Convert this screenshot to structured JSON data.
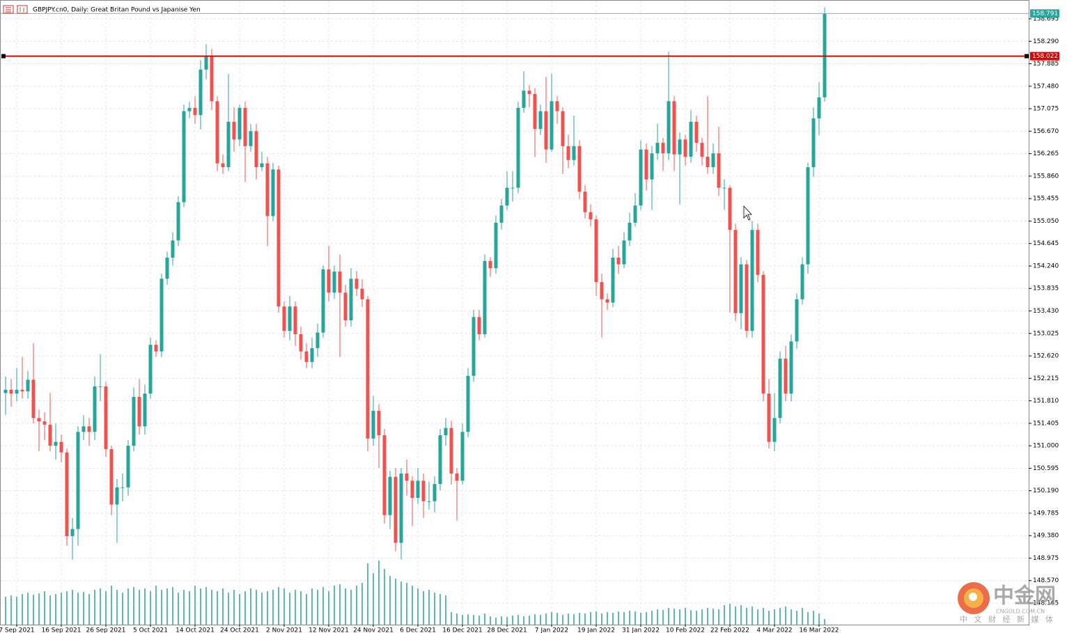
{
  "chart_data": {
    "type": "candlestick",
    "title": "GBPJPY.cn0, Daily:  Great Britan Pound vs Japanise Yen",
    "up_color": "#26a69a",
    "down_color": "#ef5350",
    "volume_color": "#26a69a",
    "grid": true,
    "ylim": [
      147.776,
      159.034
    ],
    "yticks": [
      158.695,
      {
        "value": 158.29,
        "label": "158.290"
      },
      157.885,
      {
        "value": 157.48,
        "label": "157.480"
      },
      157.075,
      {
        "value": 156.67,
        "label": "156.670"
      },
      156.265,
      {
        "value": 155.86,
        "label": "155.860"
      },
      155.455,
      {
        "value": 155.05,
        "label": "155.050"
      },
      154.645,
      {
        "value": 154.24,
        "label": "154.240"
      },
      153.835,
      {
        "value": 153.43,
        "label": "153.430"
      },
      153.025,
      {
        "value": 152.62,
        "label": "152.620"
      },
      152.215,
      {
        "value": 151.81,
        "label": "151.810"
      },
      151.405,
      {
        "value": 151,
        "label": "151.000"
      },
      150.595,
      {
        "value": 150.19,
        "label": "150.190"
      },
      149.785,
      {
        "value": 149.38,
        "label": "149.380"
      },
      148.975,
      {
        "value": 148.57,
        "label": "148.570"
      },
      148.165
    ],
    "hline": {
      "value": 158.022,
      "label": "158.022",
      "color": "#e00000"
    },
    "last_price": {
      "value": 158.791,
      "label": "158.791"
    },
    "x_labels": [
      "7 Sep 2021",
      "16 Sep 2021",
      "26 Sep 2021",
      "5 Oct 2021",
      "14 Oct 2021",
      "24 Oct 2021",
      "2 Nov 2021",
      "12 Nov 2021",
      "24 Nov 2021",
      "6 Dec 2021",
      "16 Dec 2021",
      "28 Dec 2021",
      "7 Jan 2022",
      "19 Jan 2022",
      "31 Jan 2022",
      "10 Feb 2022",
      "22 Feb 2022",
      "4 Mar 2022",
      "16 Mar 2022"
    ],
    "open": [
      151.95,
      152.01,
      151.94,
      152.01,
      151.98,
      152.19,
      151.5,
      151.44,
      151.38,
      151.0,
      151.07,
      150.88,
      149.37,
      149.5,
      151.25,
      151.35,
      151.25,
      152.07,
      152.07,
      150.94,
      149.94,
      150.25,
      150.25,
      151.0,
      151.88,
      151.35,
      151.94,
      152.82,
      152.7,
      154.01,
      154.39,
      154.7,
      155.39,
      157.03,
      157.09,
      156.96,
      157.78,
      158.03,
      157.21,
      156.09,
      156.02,
      156.84,
      156.52,
      157.09,
      156.4,
      156.67,
      156.02,
      156.09,
      155.14,
      155.98,
      153.51,
      153.07,
      153.51,
      153.01,
      152.7,
      152.51,
      152.76,
      153.04,
      154.18,
      153.76,
      154.14,
      153.76,
      153.26,
      154.01,
      153.83,
      153.64,
      151.13,
      151.63,
      151.19,
      149.75,
      150.44,
      149.25,
      150.5,
      150.37,
      150.06,
      150.37,
      150.0,
      150.0,
      150.31,
      151.19,
      151.32,
      150.5,
      150.37,
      151.25,
      152.26,
      153.32,
      153.01,
      154.33,
      154.2,
      155.02,
      155.33,
      155.65,
      155.65,
      157.09,
      157.4,
      157.34,
      156.71,
      157.03,
      156.34,
      157.21,
      157.03,
      156.4,
      156.15,
      156.4,
      155.58,
      155.21,
      155.08,
      153.95,
      153.64,
      153.58,
      154.39,
      154.27,
      154.7,
      155.02,
      155.33,
      156.34,
      155.8,
      156.27,
      156.46,
      156.27,
      157.21,
      156.25,
      156.52,
      156.21,
      156.84,
      156.46,
      156.21,
      156.02,
      156.27,
      155.65,
      155.65,
      154.89,
      153.39,
      154.27,
      153.07,
      154.89,
      154.08,
      151.94,
      151.07,
      151.5,
      152.57,
      151.94,
      152.88,
      153.64,
      154.27,
      156.02,
      156.9,
      157.28
    ],
    "high": [
      152.25,
      152.2,
      152.4,
      152.6,
      152.35,
      152.85,
      151.65,
      151.6,
      151.95,
      151.4,
      151.2,
      150.95,
      149.7,
      151.35,
      151.55,
      151.5,
      152.25,
      152.65,
      152.15,
      151.0,
      150.4,
      150.5,
      151.1,
      152.05,
      152.2,
      152.1,
      152.95,
      152.9,
      154.1,
      154.5,
      154.85,
      155.5,
      157.15,
      157.2,
      157.3,
      157.95,
      158.24,
      158.15,
      157.3,
      156.25,
      157.7,
      157.1,
      157.15,
      157.2,
      156.8,
      156.8,
      156.3,
      156.2,
      156.1,
      156.05,
      153.6,
      153.7,
      153.6,
      153.15,
      152.85,
      152.95,
      153.2,
      154.25,
      154.6,
      154.25,
      154.45,
      153.9,
      154.2,
      154.15,
      154.0,
      153.7,
      151.9,
      151.75,
      151.3,
      150.55,
      150.6,
      150.6,
      150.75,
      150.45,
      150.6,
      150.5,
      150.35,
      150.45,
      151.3,
      151.5,
      151.45,
      150.6,
      151.4,
      152.4,
      153.45,
      153.45,
      154.45,
      154.4,
      155.15,
      155.45,
      155.95,
      155.95,
      157.2,
      157.75,
      157.5,
      157.45,
      157.15,
      157.65,
      157.7,
      157.3,
      157.1,
      156.6,
      156.95,
      156.5,
      155.7,
      155.35,
      155.15,
      154.1,
      153.75,
      154.55,
      154.6,
      154.85,
      155.2,
      155.55,
      156.5,
      156.45,
      156.4,
      156.8,
      156.55,
      158.1,
      157.3,
      156.65,
      156.6,
      157.05,
      156.95,
      156.55,
      157.3,
      156.45,
      156.75,
      155.8,
      155.7,
      155.0,
      154.4,
      154.35,
      155.05,
      155.0,
      154.15,
      152.2,
      151.95,
      152.7,
      152.8,
      153.0,
      153.75,
      154.4,
      156.1,
      157.1,
      157.55,
      158.9
    ],
    "low": [
      151.55,
      151.7,
      151.8,
      151.85,
      151.85,
      151.4,
      150.9,
      151.1,
      150.9,
      150.75,
      150.7,
      149.2,
      148.95,
      149.2,
      151.1,
      151.0,
      151.1,
      151.8,
      150.8,
      149.75,
      149.25,
      150.0,
      150.1,
      150.9,
      151.2,
      151.2,
      151.85,
      152.6,
      152.6,
      153.9,
      154.25,
      154.6,
      155.3,
      156.9,
      156.8,
      156.7,
      157.6,
      157.05,
      155.95,
      155.9,
      155.95,
      156.3,
      156.4,
      155.75,
      156.3,
      155.8,
      155.95,
      154.6,
      155.05,
      153.4,
      152.95,
      152.9,
      152.8,
      152.55,
      152.4,
      152.4,
      152.6,
      152.95,
      153.6,
      153.65,
      152.6,
      153.15,
      153.15,
      153.7,
      153.5,
      150.9,
      151.0,
      150.6,
      149.6,
      149.5,
      149.1,
      148.95,
      150.1,
      149.55,
      149.95,
      149.7,
      149.85,
      149.8,
      150.2,
      151.0,
      150.3,
      149.65,
      150.3,
      151.15,
      152.15,
      152.9,
      152.95,
      154.05,
      154.1,
      154.9,
      155.25,
      155.4,
      155.55,
      157.0,
      157.1,
      156.2,
      156.6,
      156.1,
      156.3,
      156.8,
      155.9,
      156.0,
      156.05,
      155.45,
      155.1,
      154.95,
      153.7,
      152.95,
      153.45,
      153.5,
      154.1,
      154.2,
      154.6,
      154.95,
      155.25,
      155.6,
      155.25,
      156.15,
      155.95,
      156.15,
      155.95,
      155.35,
      156.05,
      156.1,
      156.3,
      156.05,
      155.9,
      155.9,
      155.5,
      155.25,
      153.4,
      153.25,
      153.1,
      152.95,
      152.95,
      153.95,
      151.8,
      150.95,
      150.9,
      151.4,
      151.8,
      151.8,
      152.75,
      153.55,
      154.1,
      155.85,
      156.6,
      157.2
    ],
    "close": [
      152.01,
      151.94,
      152.01,
      151.98,
      152.19,
      151.5,
      151.44,
      151.38,
      151.0,
      151.07,
      150.88,
      149.37,
      149.5,
      151.25,
      151.35,
      151.25,
      152.07,
      152.07,
      150.94,
      149.94,
      150.25,
      150.25,
      151.0,
      151.88,
      151.35,
      151.94,
      152.82,
      152.7,
      154.01,
      154.39,
      154.7,
      155.39,
      157.03,
      157.09,
      156.96,
      157.78,
      158.03,
      157.21,
      156.09,
      156.02,
      156.84,
      156.52,
      157.09,
      156.4,
      156.67,
      156.02,
      156.09,
      155.14,
      155.98,
      153.51,
      153.07,
      153.51,
      153.01,
      152.7,
      152.51,
      152.76,
      153.04,
      154.18,
      153.76,
      154.14,
      153.76,
      153.26,
      154.01,
      153.83,
      153.64,
      151.13,
      151.63,
      151.19,
      149.75,
      150.44,
      149.25,
      150.5,
      150.37,
      150.06,
      150.37,
      150.0,
      150.0,
      150.31,
      151.19,
      151.32,
      150.5,
      150.37,
      151.25,
      152.26,
      153.32,
      153.01,
      154.33,
      154.2,
      155.02,
      155.33,
      155.65,
      155.65,
      157.09,
      157.4,
      157.34,
      156.71,
      157.03,
      156.34,
      157.21,
      157.03,
      156.4,
      156.15,
      156.4,
      155.58,
      155.21,
      155.08,
      153.95,
      153.64,
      153.58,
      154.39,
      154.27,
      154.7,
      155.02,
      155.33,
      156.34,
      155.8,
      156.27,
      156.46,
      156.27,
      157.21,
      156.25,
      156.52,
      156.21,
      156.84,
      156.46,
      156.21,
      156.02,
      156.27,
      155.65,
      155.65,
      154.89,
      153.39,
      154.27,
      153.07,
      154.89,
      154.08,
      151.94,
      151.07,
      151.5,
      152.57,
      151.94,
      152.88,
      153.64,
      154.27,
      156.02,
      156.9,
      157.28,
      158.791
    ],
    "volume": [
      40,
      42,
      40,
      44,
      46,
      43,
      45,
      48,
      42,
      44,
      46,
      48,
      50,
      46,
      47,
      44,
      50,
      52,
      48,
      56,
      50,
      46,
      52,
      54,
      50,
      52,
      48,
      56,
      50,
      52,
      54,
      46,
      50,
      48,
      56,
      52,
      54,
      50,
      48,
      52,
      46,
      50,
      44,
      48,
      52,
      50,
      46,
      48,
      50,
      54,
      52,
      46,
      50,
      48,
      44,
      52,
      50,
      54,
      48,
      56,
      58,
      52,
      50,
      56,
      60,
      88,
      74,
      92,
      80,
      70,
      66,
      62,
      60,
      56,
      52,
      48,
      50,
      46,
      44,
      42,
      18,
      16,
      14,
      15,
      14,
      13,
      16,
      12,
      10,
      12,
      11,
      13,
      14,
      12,
      13,
      15,
      14,
      16,
      18,
      17,
      14,
      16,
      15,
      17,
      16,
      18,
      19,
      16,
      18,
      17,
      19,
      18,
      20,
      19,
      17,
      18,
      20,
      22,
      21,
      24,
      23,
      22,
      24,
      21,
      20,
      22,
      24,
      23,
      22,
      28,
      30,
      26,
      28,
      24,
      26,
      22,
      24,
      20,
      22,
      24,
      26,
      22,
      20,
      24,
      18,
      20,
      16,
      8
    ]
  },
  "watermark": {
    "name": "中金网",
    "site": "CNGOLD.COM.CN",
    "slogan": "中 文 财 经 新 媒 体"
  }
}
